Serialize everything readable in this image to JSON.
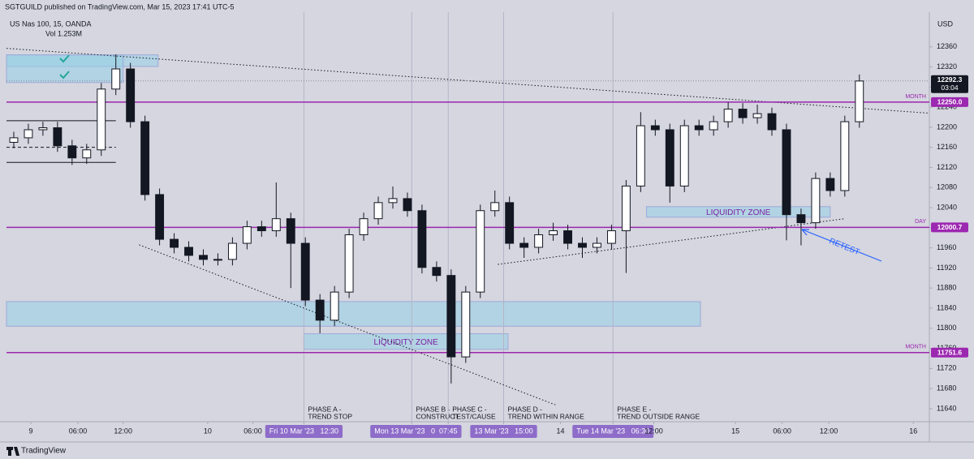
{
  "header": {
    "published": "SGTGUILD published on TradingView.com, Mar 15, 2023 17:41 UTC-5",
    "symbol": "US Nas 100, 15, OANDA",
    "volume": "Vol 1.253M",
    "currency": "USD",
    "brand": "TradingView"
  },
  "chart_data": {
    "type": "candlestick",
    "x": [
      0,
      1,
      2,
      3,
      4,
      5,
      6,
      7,
      8,
      9,
      10,
      11,
      12,
      13,
      14,
      15,
      16,
      17,
      18,
      19,
      20,
      21,
      22,
      23,
      24,
      25,
      26,
      27,
      28,
      29,
      30,
      31,
      32,
      33,
      34,
      35,
      36,
      37,
      38,
      39,
      40,
      41,
      42,
      43,
      44,
      45,
      46,
      47,
      48,
      49,
      50,
      51,
      52,
      53,
      54,
      55,
      56,
      57,
      58
    ],
    "open": [
      12170,
      12179,
      12195,
      12199,
      12163,
      12139,
      12155,
      12276,
      12316,
      12211,
      12066,
      11977,
      11961,
      11945,
      11937,
      11937,
      11969,
      12002,
      11994,
      12018,
      11969,
      11856,
      11816,
      11872,
      11986,
      12018,
      12050,
      12058,
      12034,
      11921,
      11905,
      11743,
      11872,
      12034,
      12050,
      11969,
      11961,
      11986,
      11994,
      11969,
      11961,
      11969,
      11994,
      12083,
      12203,
      12195,
      12083,
      12203,
      12195,
      12211,
      12236,
      12219,
      12227,
      12195,
      12026,
      12010,
      12098,
      12074,
      12211
    ],
    "high": [
      12191,
      12207,
      12211,
      12211,
      12175,
      12167,
      12288,
      12345,
      12328,
      12223,
      12078,
      11989,
      11973,
      11957,
      11949,
      11981,
      12014,
      12014,
      12090,
      12030,
      11981,
      11868,
      11884,
      11998,
      12030,
      12062,
      12082,
      12070,
      12046,
      11933,
      11917,
      11884,
      12046,
      12074,
      12062,
      11981,
      11998,
      12010,
      12006,
      11981,
      11981,
      12006,
      12095,
      12230,
      12215,
      12207,
      12215,
      12215,
      12223,
      12250,
      12248,
      12245,
      12239,
      12207,
      12038,
      12110,
      12110,
      12223,
      12305
    ],
    "low": [
      12158,
      12167,
      12183,
      12151,
      12125,
      12127,
      12143,
      12264,
      12199,
      12054,
      11965,
      11949,
      11933,
      11925,
      11925,
      11925,
      11957,
      11982,
      11982,
      11880,
      11844,
      11790,
      11804,
      11860,
      11974,
      12006,
      12038,
      12022,
      11909,
      11893,
      11690,
      11731,
      11860,
      12022,
      11957,
      11940,
      11949,
      11974,
      11957,
      11940,
      11949,
      11957,
      11910,
      12071,
      12183,
      12050,
      12071,
      12183,
      12183,
      12199,
      12207,
      12207,
      12183,
      11975,
      11965,
      11998,
      12062,
      12062,
      12199
    ],
    "close": [
      12179,
      12195,
      12199,
      12163,
      12139,
      12155,
      12276,
      12316,
      12211,
      12066,
      11977,
      11961,
      11945,
      11937,
      11937,
      11969,
      12002,
      11994,
      12018,
      11969,
      11856,
      11816,
      11872,
      11986,
      12018,
      12050,
      12058,
      12034,
      11921,
      11905,
      11743,
      11872,
      12034,
      12050,
      11969,
      11961,
      11986,
      11994,
      11969,
      11961,
      11969,
      11994,
      12083,
      12203,
      12195,
      12083,
      12203,
      12195,
      12211,
      12236,
      12219,
      12227,
      12195,
      12026,
      12010,
      12098,
      12074,
      12211,
      12292
    ],
    "up_color": "#ffffff",
    "down_color": "#131722",
    "xlim": [
      -0.5,
      62.8
    ],
    "ylim": [
      11614,
      12429
    ],
    "yticks": [
      12360,
      12320,
      12280,
      12240,
      12200,
      12160,
      12120,
      12080,
      12040,
      12000,
      11960,
      11920,
      11880,
      11840,
      11800,
      11760,
      11720,
      11680,
      11640
    ],
    "xticks": [
      {
        "value": 1.17,
        "label": "9"
      },
      {
        "value": 4.4,
        "label": "06:00"
      },
      {
        "value": 7.5,
        "label": "12:00"
      },
      {
        "value": 13.3,
        "label": "10"
      },
      {
        "value": 16.4,
        "label": "06:00"
      },
      {
        "value": 19.9,
        "label": "Fri 10 Mar '23   12:30",
        "highlight": true
      },
      {
        "value": 27.3,
        "label": "Mon 13 Mar '23   03:30",
        "highlight": true
      },
      {
        "value": 29.8,
        "label": "07:45",
        "highlight": true
      },
      {
        "value": 33.6,
        "label": "13 Mar '23   15:00",
        "highlight": true
      },
      {
        "value": 37.5,
        "label": "14"
      },
      {
        "value": 41.1,
        "label": "Tue 14 Mar '23   06:30",
        "highlight": true
      },
      {
        "value": 43.9,
        "label": "12:00"
      },
      {
        "value": 49.5,
        "label": "15"
      },
      {
        "value": 52.7,
        "label": "06:00"
      },
      {
        "value": 55.9,
        "label": "12:00"
      },
      {
        "value": 61.7,
        "label": "16"
      }
    ],
    "levels": [
      {
        "value": 12250,
        "label": "12250.0",
        "tag": "MONTH"
      },
      {
        "value": 12000.7,
        "label": "12000.7",
        "tag": "DAY"
      },
      {
        "value": 11751.6,
        "label": "11751.6",
        "tag": "MONTH"
      }
    ],
    "level_color": "#9c27b0",
    "last_price": {
      "value": 12292.3,
      "countdown": "03:04"
    },
    "zones": [
      {
        "x": [
          -0.5,
          9.9
        ],
        "y": [
          12321,
          12344
        ]
      },
      {
        "x": [
          -0.5,
          7.5
        ],
        "y": [
          12289,
          12344
        ]
      },
      {
        "x": [
          43.4,
          56.0
        ],
        "y": [
          12021,
          12042
        ],
        "label": "LIQUIDITY ZONE"
      },
      {
        "x": [
          -0.5,
          47.1
        ],
        "y": [
          11804,
          11853
        ]
      },
      {
        "x": [
          19.9,
          33.9
        ],
        "y": [
          11758,
          11789
        ],
        "label": "LIQUIDITY ZONE"
      }
    ],
    "trend_lines": [
      {
        "x": [
          -0.5,
          62.8
        ],
        "y": [
          12357,
          12228
        ]
      },
      {
        "x": [
          8.6,
          37.2
        ],
        "y": [
          11966,
          11647
        ]
      },
      {
        "x": [
          33.2,
          57.0
        ],
        "y": [
          11927,
          12018
        ]
      }
    ],
    "range_lines": [
      {
        "x": [
          -0.5,
          7.0
        ],
        "y": 12213
      },
      {
        "x": [
          -0.5,
          7.0
        ],
        "y": 12160,
        "dashed": true
      },
      {
        "x": [
          -0.5,
          7.0
        ],
        "y": 12130
      }
    ],
    "phases": [
      {
        "value": 19.9,
        "label": [
          "PHASE A -",
          "TREND STOP"
        ]
      },
      {
        "value": 27.3,
        "label": [
          "PHASE B -",
          "CONSTRUCT"
        ]
      },
      {
        "value": 29.8,
        "label": [
          "PHASE C -",
          "TEST/CAUSE"
        ]
      },
      {
        "value": 33.6,
        "label": [
          "PHASE D -",
          "TREND WITHIN RANGE"
        ]
      },
      {
        "value": 41.1,
        "label": [
          "PHASE E -",
          "TREND OUTSIDE RANGE"
        ]
      }
    ],
    "retest": "RETEST"
  }
}
